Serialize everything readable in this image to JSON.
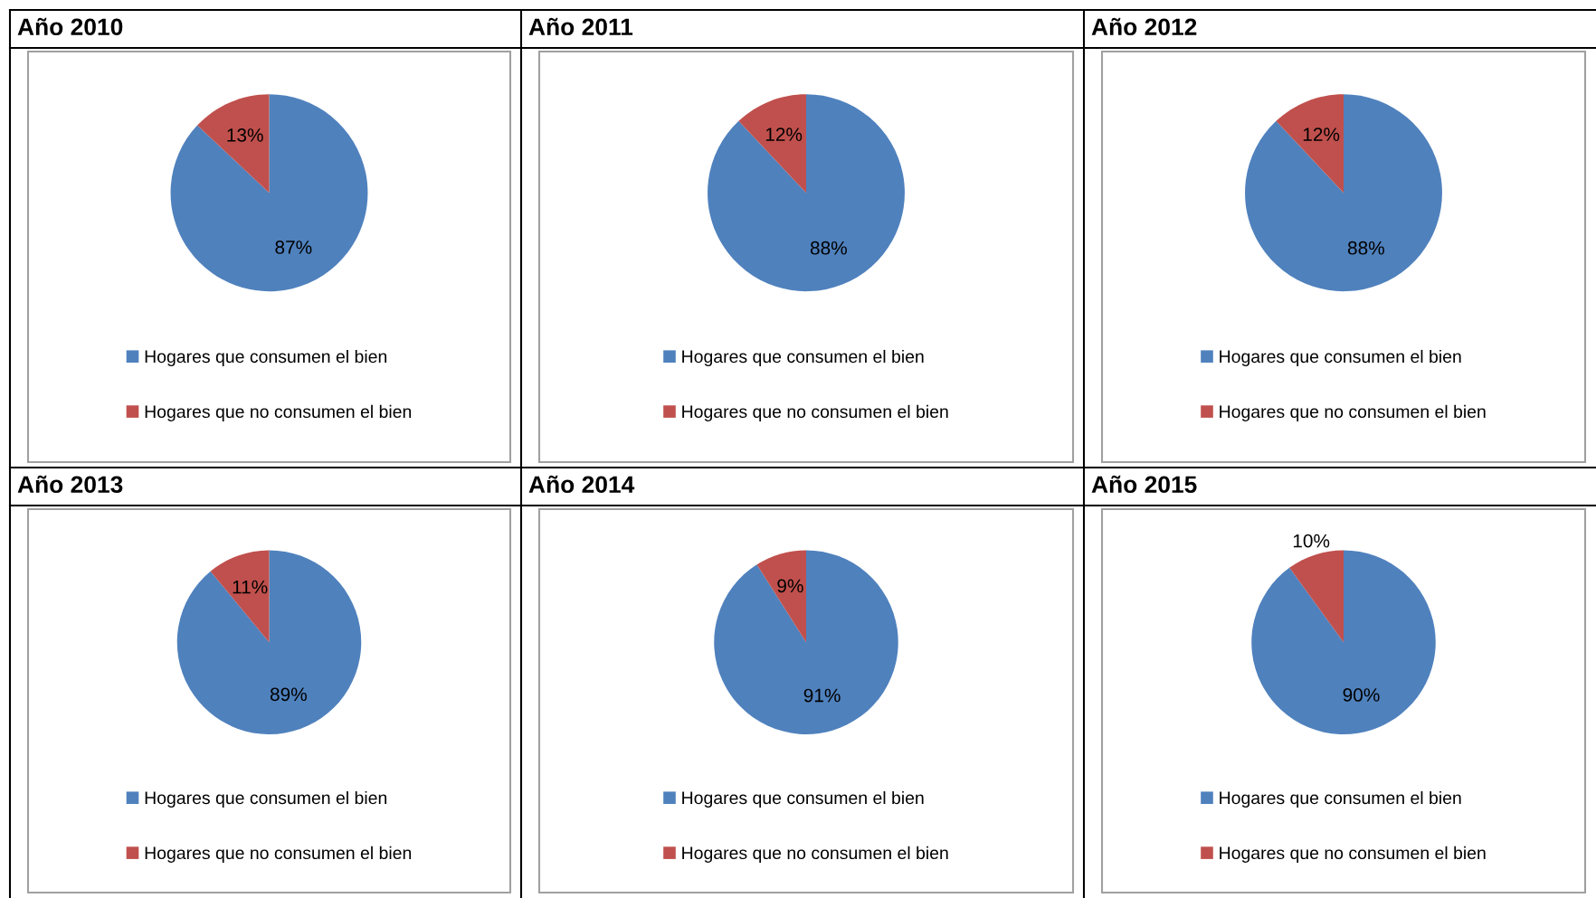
{
  "chart_data": [
    {
      "type": "pie",
      "title": "Año 2010",
      "categories": [
        "Hogares que consumen el bien",
        "Hogares que no consumen el bien"
      ],
      "values": [
        87,
        13
      ],
      "colors": [
        "#4f81bd",
        "#c0504d"
      ],
      "value_labels": [
        "87%",
        "13%"
      ],
      "legend": "bottom"
    },
    {
      "type": "pie",
      "title": "Año 2011",
      "categories": [
        "Hogares que consumen el bien",
        "Hogares que no consumen el bien"
      ],
      "values": [
        88,
        12
      ],
      "colors": [
        "#4f81bd",
        "#c0504d"
      ],
      "value_labels": [
        "88%",
        "12%"
      ],
      "legend": "bottom"
    },
    {
      "type": "pie",
      "title": "Año 2012",
      "categories": [
        "Hogares que consumen el bien",
        "Hogares que no consumen el bien"
      ],
      "values": [
        88,
        12
      ],
      "colors": [
        "#4f81bd",
        "#c0504d"
      ],
      "value_labels": [
        "88%",
        "12%"
      ],
      "legend": "bottom"
    },
    {
      "type": "pie",
      "title": "Año 2013",
      "categories": [
        "Hogares que consumen el bien",
        "Hogares que no consumen el bien"
      ],
      "values": [
        89,
        11
      ],
      "colors": [
        "#4f81bd",
        "#c0504d"
      ],
      "value_labels": [
        "89%",
        "11%"
      ],
      "legend": "bottom"
    },
    {
      "type": "pie",
      "title": "Año 2014",
      "categories": [
        "Hogares que consumen el bien",
        "Hogares que no consumen el bien"
      ],
      "values": [
        91,
        9
      ],
      "colors": [
        "#4f81bd",
        "#c0504d"
      ],
      "value_labels": [
        "91%",
        "9%"
      ],
      "legend": "bottom"
    },
    {
      "type": "pie",
      "title": "Año 2015",
      "categories": [
        "Hogares que consumen el bien",
        "Hogares que no consumen el bien"
      ],
      "values": [
        90,
        10
      ],
      "colors": [
        "#4f81bd",
        "#c0504d"
      ],
      "value_labels": [
        "90%",
        "10%"
      ],
      "legend": "bottom"
    }
  ]
}
